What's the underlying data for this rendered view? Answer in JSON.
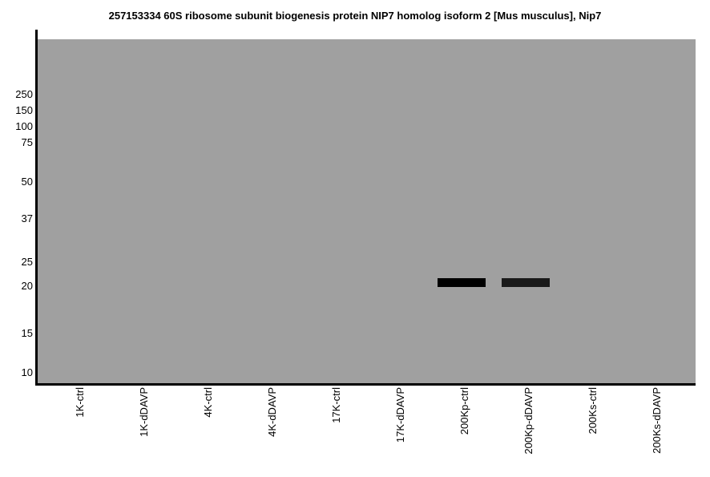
{
  "title": "257153334 60S ribosome subunit biogenesis protein NIP7 homolog isoform 2 [Mus musculus], Nip7",
  "chart_data": {
    "type": "gel-blot",
    "description": "Simulated western blot: gray gel panel with molecular weight ladder on y-axis (kDa) and sample lanes on x-axis; two dark bands near 21 kDa in the 200Kp lanes",
    "title": "257153334 60S ribosome subunit biogenesis protein NIP7 homolog isoform 2 [Mus musculus], Nip7",
    "mw_markers_kda": [
      250,
      150,
      100,
      75,
      50,
      37,
      25,
      20,
      15,
      10
    ],
    "lanes": [
      "1K-ctrl",
      "1K-dDAVP",
      "4K-ctrl",
      "4K-dDAVP",
      "17K-ctrl",
      "17K-dDAVP",
      "200Kp-ctrl",
      "200Kp-dDAVP",
      "200Ks-ctrl",
      "200Ks-dDAVP"
    ],
    "bands": [
      {
        "lane": "200Kp-ctrl",
        "mw_kda": 21,
        "intensity": 1.0,
        "color": "#000000"
      },
      {
        "lane": "200Kp-dDAVP",
        "mw_kda": 21,
        "intensity": 0.9,
        "color": "#1a1a1a"
      }
    ],
    "colors": {
      "gel_background": "#a0a0a0",
      "axis": "#000000",
      "page_background": "#ffffff"
    },
    "legend": "none",
    "grid": "off"
  }
}
